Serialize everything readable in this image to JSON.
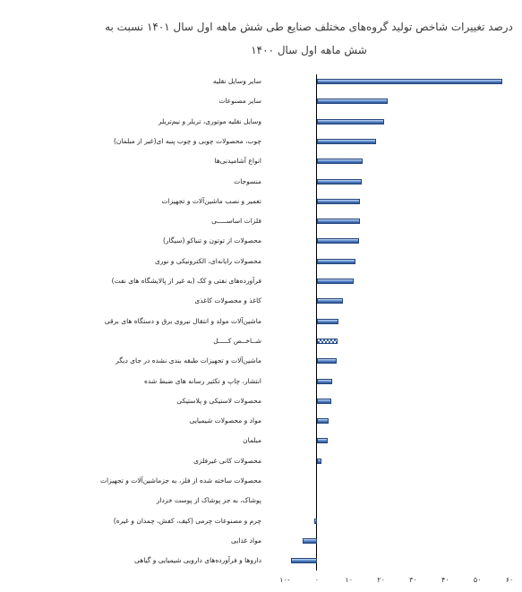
{
  "chart_data": {
    "type": "bar",
    "orientation": "horizontal",
    "title": [
      "درصد تغییرات شاخص تولید گروه‌های مختلف صنایع طی شش ماهه اول سال ۱۴۰۱ نسبت به",
      "شش ماهه اول سال ۱۴۰۰"
    ],
    "categories": [
      "سایر وسایل نقلیه",
      "سایر مصنوعات",
      "وسایل نقلیه موتوری، تریلر و نیم‌تریلر",
      "چوب، محصولات چوبی و چوب پنبه ای(غیر از مبلمان)",
      "انواع آشامیدنی‌ها",
      "منسوجات",
      "تعمیر و نصب ماشین‌آلات و تجهیزات",
      "فلزات اساســـــی",
      "محصولات از توتون و تنباکو (سیگار)",
      "محصولات رایانه‌ای، الکترونیکی و نوری",
      "فرآورده‌های نفتی و کک (به غیر از پالایشگاه های نفت)",
      "کاغذ و محصولات کاغذی",
      "ماشین‌آلات مولد و انتقال نیروی برق و دستگاه های برقی",
      "شــاخــص کـــــل",
      "ماشین‌آلات و تجهیزات طبقه بندی نشده در جای دیگر",
      "انتشار، چاپ و تکثیر رسانه های ضبط شده",
      "محصولات لاستیکی و پلاستیکی",
      "مواد و محصولات شیمیایی",
      "مبلمان",
      "محصولات کانی غیرفلزی",
      "محصولات ساخته شده از فلز، به جزماشین‌آلات و تجهیزات",
      "پوشاک، به جز پوشاک از پوست خزدار",
      "چرم و مصنوعات چرمی (کیف، کفش، چمدان و غیره)",
      "مواد غذایی",
      "داروها و فرآورده‌های دارویی شیمیایی و گیاهی"
    ],
    "values": [
      57.8,
      22.1,
      20.9,
      18.4,
      14.2,
      14.0,
      13.4,
      13.3,
      13.1,
      12.0,
      11.5,
      8.1,
      6.7,
      6.4,
      6.1,
      4.7,
      4.5,
      3.6,
      3.5,
      1.4,
      0.0,
      0.0,
      -0.8,
      -4.5,
      -8.1
    ],
    "patterned": [
      false,
      false,
      false,
      false,
      false,
      false,
      false,
      false,
      false,
      false,
      false,
      false,
      false,
      true,
      false,
      false,
      false,
      false,
      false,
      false,
      false,
      false,
      false,
      false,
      false
    ],
    "xlim": [
      -10,
      60
    ],
    "x_ticks": [
      -10,
      0,
      10,
      20,
      30,
      40,
      50,
      60
    ],
    "x_tick_labels": [
      "۱۰-",
      "۰",
      "۱۰",
      "۲۰",
      "۳۰",
      "۴۰",
      "۵۰",
      "۶۰"
    ],
    "grid": false,
    "legend": "none",
    "colors": {
      "bar": "#4a78bf",
      "bar_light": "#7ea5dc",
      "bar_dark": "#2b528c",
      "bar_edge": "#25467c",
      "pattern": "#3a62a6",
      "axis": "#000000"
    }
  }
}
